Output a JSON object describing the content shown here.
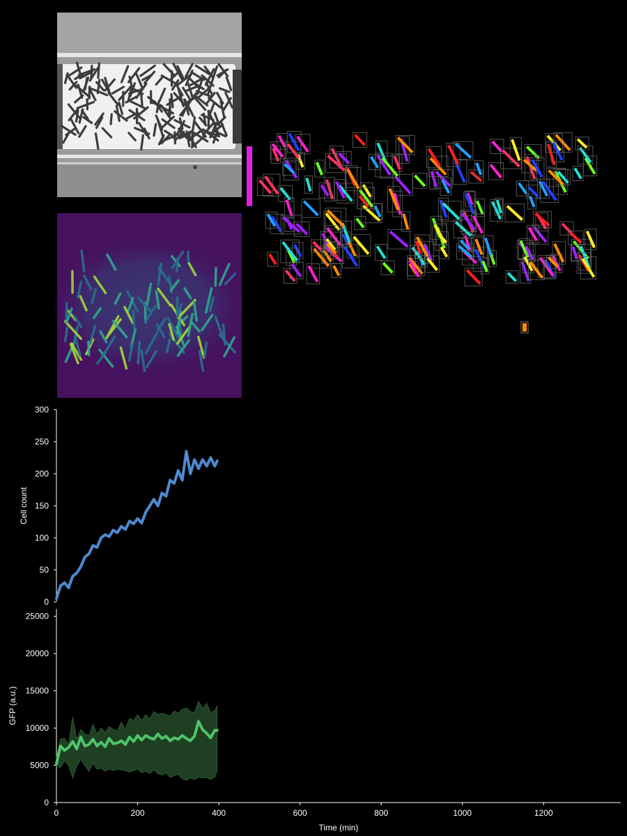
{
  "images": {
    "phase": {
      "description": "phase-contrast image of rod-shaped bacteria in a microfluidic trap"
    },
    "fluorescence": {
      "description": "GFP fluorescence image in viridis colormap"
    },
    "segmentation": {
      "description": "segmentation masks of individual cells with bounding boxes"
    }
  },
  "colors": {
    "background": "#000000",
    "axis": "#ffffff",
    "cell_count_line": "#4f8ad0",
    "gfp_line": "#4fc36a",
    "gfp_band": "#1e3f22",
    "fluo_bg": "#46115f"
  },
  "chart_data": [
    {
      "type": "line",
      "ylabel": "Cell count",
      "xlabel": "",
      "xlim": [
        0,
        1390
      ],
      "ylim": [
        0,
        300
      ],
      "yticks": [
        0,
        50,
        100,
        150,
        200,
        250,
        300
      ],
      "xticks": [],
      "x": [
        0,
        10,
        20,
        30,
        40,
        50,
        60,
        70,
        80,
        90,
        100,
        110,
        120,
        130,
        140,
        150,
        160,
        170,
        180,
        190,
        200,
        210,
        220,
        230,
        240,
        250,
        260,
        270,
        280,
        290,
        300,
        310,
        320,
        330,
        340,
        350,
        360,
        370,
        380,
        390,
        396
      ],
      "series": [
        {
          "values": [
            5,
            25,
            30,
            22,
            40,
            45,
            55,
            70,
            75,
            88,
            85,
            100,
            105,
            102,
            112,
            108,
            118,
            113,
            126,
            122,
            130,
            123,
            140,
            150,
            160,
            150,
            170,
            165,
            190,
            185,
            205,
            190,
            235,
            200,
            222,
            208,
            222,
            212,
            225,
            212,
            220
          ]
        }
      ]
    },
    {
      "type": "area",
      "ylabel": "GFP (a.u.)",
      "xlabel": "Time (min)",
      "xlim": [
        0,
        1390
      ],
      "ylim": [
        0,
        26000
      ],
      "yticks": [
        0,
        5000,
        10000,
        15000,
        20000,
        25000
      ],
      "xticks": [
        0,
        200,
        400,
        600,
        800,
        1000,
        1200
      ],
      "x": [
        0,
        10,
        20,
        30,
        40,
        50,
        60,
        70,
        80,
        90,
        100,
        110,
        120,
        130,
        140,
        150,
        160,
        170,
        180,
        190,
        200,
        210,
        220,
        230,
        240,
        250,
        260,
        270,
        280,
        290,
        300,
        310,
        320,
        330,
        340,
        350,
        360,
        370,
        380,
        390,
        396
      ],
      "series": [
        {
          "values": [
            5200,
            7600,
            7000,
            7400,
            8200,
            7200,
            8800,
            7600,
            7800,
            8500,
            7600,
            8100,
            7500,
            8600,
            7900,
            8000,
            8300,
            7800,
            8800,
            8200,
            9000,
            8400,
            9000,
            8700,
            8500,
            9200,
            8600,
            8900,
            8300,
            8700,
            8500,
            9000,
            8600,
            8300,
            8900,
            10900,
            9800,
            9300,
            8700,
            9700,
            9700
          ]
        },
        {
          "values": [
            6000,
            8500,
            8600,
            7800,
            11500,
            8500,
            9800,
            9200,
            9000,
            10500,
            9200,
            10000,
            9400,
            10200,
            9800,
            9600,
            10800,
            9800,
            11300,
            11000,
            11800,
            11000,
            11800,
            11200,
            12200,
            11800,
            12000,
            11800,
            11600,
            12300,
            12000,
            12500,
            12700,
            12200,
            12100,
            13600,
            12600,
            13300,
            12100,
            12300,
            13000
          ]
        },
        {
          "values": [
            4900,
            4700,
            5600,
            5000,
            3300,
            4900,
            5800,
            5000,
            4200,
            5300,
            4500,
            4600,
            4200,
            4500,
            4300,
            4500,
            4400,
            4300,
            4100,
            4300,
            4500,
            4000,
            4200,
            3900,
            4400,
            3900,
            3700,
            4000,
            3400,
            3600,
            3800,
            3200,
            3000,
            3300,
            3100,
            3400,
            3300,
            3400,
            3100,
            3400,
            4300
          ]
        }
      ]
    }
  ]
}
